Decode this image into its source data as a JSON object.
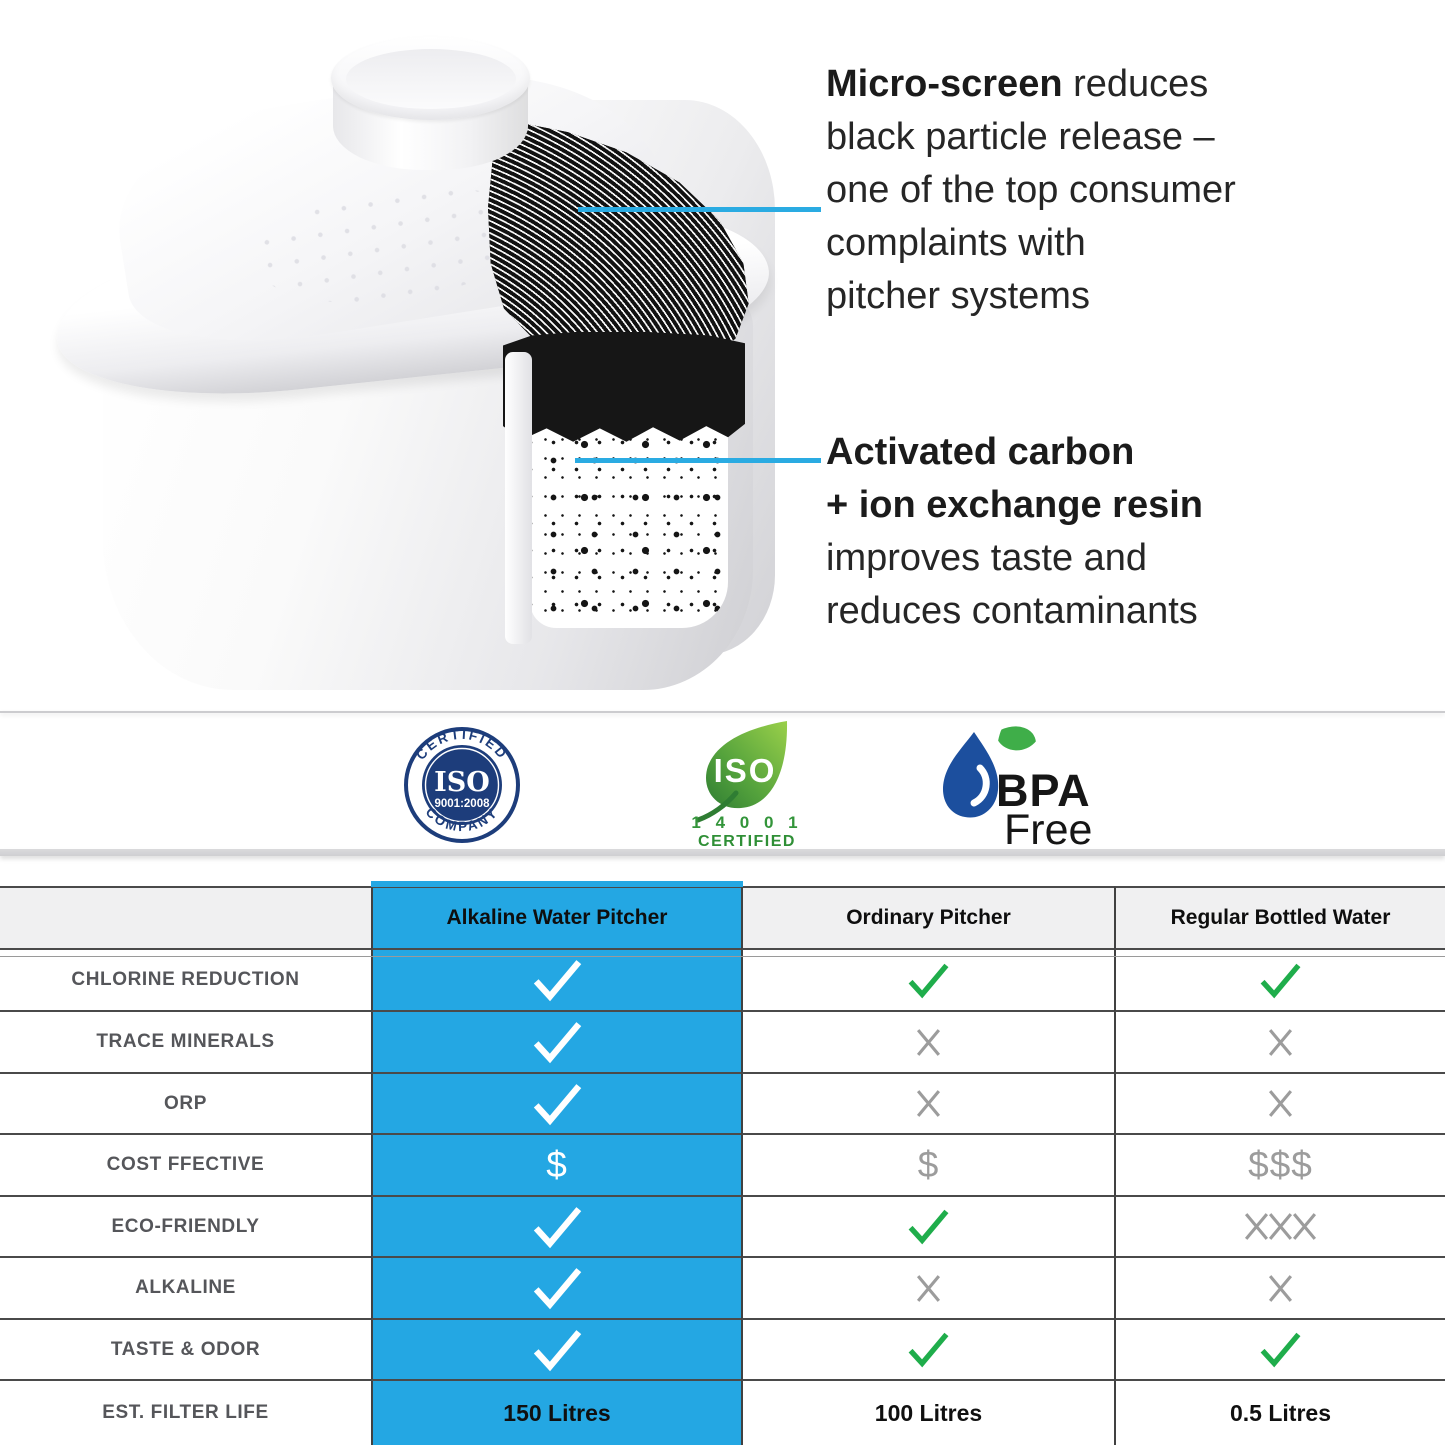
{
  "colors": {
    "accent_blue": "#24a7e3",
    "callout_line_blue": "#2aabe2",
    "check_green": "#1fad4b",
    "muted_gray": "#9c9c9c",
    "seal_navy": "#1d3d7b",
    "leaf_green": "#2f8f36",
    "drop_blue": "#1c4f9e"
  },
  "diagram": {
    "callout_top": {
      "bold": "Micro-screen",
      "line1_rest": " reduces",
      "line2": "black particle release –",
      "line3": "one of the top consumer",
      "line4": "complaints with",
      "line5": "pitcher systems"
    },
    "callout_bottom": {
      "bold_line1": "Activated carbon",
      "bold_line2": "+ ion exchange resin",
      "line3": "improves taste and",
      "line4": "reduces contaminants"
    }
  },
  "badges": {
    "iso9001": {
      "arc_top": "CERTIFIED",
      "center": "ISO",
      "sub": "9001:2008",
      "arc_bottom": "COMPANY"
    },
    "iso14001": {
      "center": "ISO",
      "number": "1 4 0 0 1",
      "label": "CERTIFIED"
    },
    "bpa": {
      "line1": "BPA",
      "line2": "Free"
    }
  },
  "table": {
    "columns": [
      "",
      "Alkaline Water Pitcher",
      "Ordinary Pitcher",
      "Regular Bottled Water"
    ],
    "rows": [
      {
        "label": "CHLORINE REDUCTION",
        "cells": [
          "check",
          "check",
          "check"
        ]
      },
      {
        "label": "TRACE MINERALS",
        "cells": [
          "check",
          "cross",
          "cross"
        ]
      },
      {
        "label": "ORP",
        "cells": [
          "check",
          "cross",
          "cross"
        ]
      },
      {
        "label": "COST FFECTIVE",
        "cells": [
          "$",
          "$",
          "$$$"
        ]
      },
      {
        "label": "ECO-FRIENDLY",
        "cells": [
          "check",
          "check",
          "cross3"
        ]
      },
      {
        "label": "ALKALINE",
        "cells": [
          "check",
          "cross",
          "cross"
        ]
      },
      {
        "label": "TASTE & ODOR",
        "cells": [
          "check",
          "check",
          "check"
        ]
      },
      {
        "label": "EST. FILTER LIFE",
        "cells": [
          "150 Litres",
          "100 Litres",
          "0.5 Litres"
        ]
      }
    ]
  }
}
